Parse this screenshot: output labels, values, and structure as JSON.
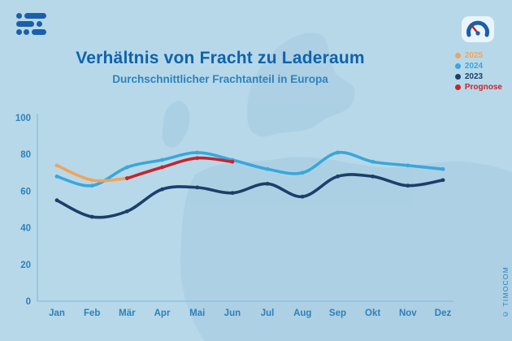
{
  "header": {
    "title": "Verhältnis von Fracht zu Laderaum",
    "subtitle": "Durchschnittlicher Frachtanteil in Europa"
  },
  "legend": [
    {
      "label": "2025",
      "color": "#f2a35c"
    },
    {
      "label": "2024",
      "color": "#39a7da"
    },
    {
      "label": "2023",
      "color": "#1c3e6b"
    },
    {
      "label": "Prognose",
      "color": "#c8232c"
    }
  ],
  "watermark": "© TIMOCOM",
  "icons": {
    "logo": "timocom-logo",
    "gauge": "gauge-icon"
  },
  "chart_data": {
    "type": "line",
    "title": "Verhältnis von Fracht zu Laderaum",
    "subtitle": "Durchschnittlicher Frachtanteil in Europa",
    "categories": [
      "Jan",
      "Feb",
      "Mär",
      "Apr",
      "Mai",
      "Jun",
      "Jul",
      "Aug",
      "Sep",
      "Okt",
      "Nov",
      "Dez"
    ],
    "series": [
      {
        "name": "2023",
        "color": "#1c3e6b",
        "values": [
          55,
          46,
          49,
          61,
          62,
          59,
          64,
          57,
          68,
          68,
          63,
          66
        ]
      },
      {
        "name": "2024",
        "color": "#39a7da",
        "values": [
          68,
          63,
          73,
          77,
          81,
          77,
          72,
          70,
          81,
          76,
          74,
          72
        ]
      },
      {
        "name": "2025",
        "color": "#f2a35c",
        "values": [
          74,
          66,
          67,
          null,
          null,
          null,
          null,
          null,
          null,
          null,
          null,
          null
        ]
      },
      {
        "name": "Prognose",
        "color": "#c8232c",
        "values": [
          null,
          null,
          67,
          73,
          78,
          76,
          null,
          null,
          null,
          null,
          null,
          null
        ]
      }
    ],
    "xlabel": "",
    "ylabel": "",
    "ylim": [
      0,
      100
    ],
    "yticks": [
      0,
      20,
      40,
      60,
      80,
      100
    ],
    "grid": false,
    "legend_position": "top-right"
  }
}
